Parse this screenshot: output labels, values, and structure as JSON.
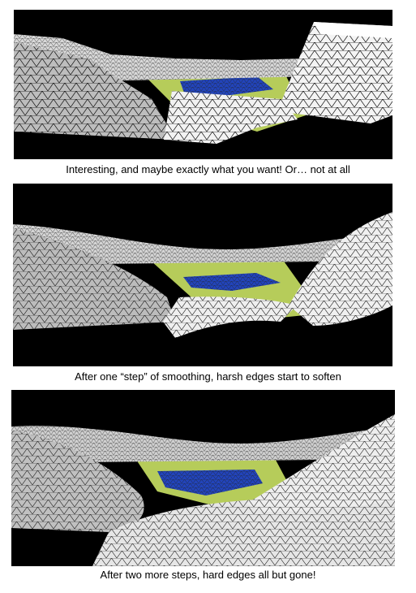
{
  "figures": [
    {
      "caption": "Interesting, and maybe exactly what you want! Or… not at all",
      "colors": {
        "background": "#000000",
        "terrain": "#f2f2f2",
        "wire": "#111111",
        "grass": "#b6cc5a",
        "water": "#2244bb"
      }
    },
    {
      "caption": "After one “step” of smoothing, harsh edges start to soften",
      "colors": {
        "background": "#000000",
        "terrain": "#efefef",
        "wire": "#111111",
        "grass": "#b6cc5a",
        "water": "#2244bb"
      }
    },
    {
      "caption": "After two more steps, hard edges all but gone!",
      "colors": {
        "background": "#000000",
        "terrain": "#ececec",
        "wire": "#111111",
        "grass": "#b6cc5a",
        "water": "#2244bb"
      }
    }
  ]
}
